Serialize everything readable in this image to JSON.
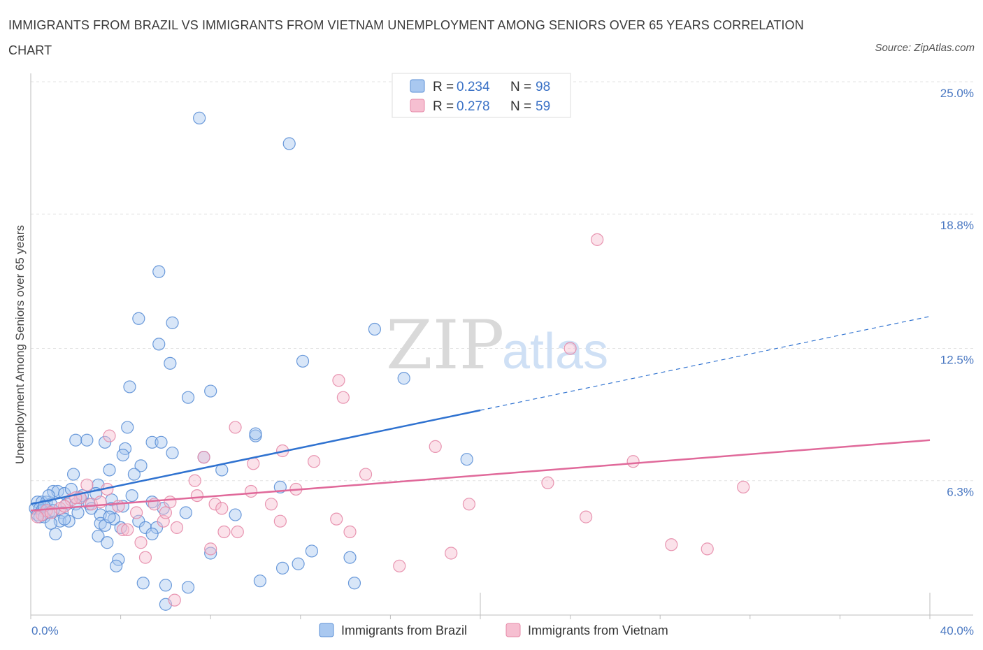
{
  "title": "IMMIGRANTS FROM BRAZIL VS IMMIGRANTS FROM VIETNAM UNEMPLOYMENT AMONG SENIORS OVER 65 YEARS CORRELATION CHART",
  "source": "Source: ZipAtlas.com",
  "watermark": {
    "zip": "ZIP",
    "atlas": "atlas"
  },
  "colors": {
    "brazil_fill": "#a9c8f0",
    "brazil_stroke": "#5b8fd6",
    "brazil_line": "#2f72d0",
    "vietnam_fill": "#f6bfd1",
    "vietnam_stroke": "#e68aa8",
    "vietnam_line": "#e0699a",
    "grid": "#e3e3e3",
    "axis_label": "#4a78c2"
  },
  "legend": {
    "r_label": "R =",
    "n_label": "N =",
    "brazil_r": "0.234",
    "brazil_n": "98",
    "vietnam_r": "0.278",
    "vietnam_n": "59"
  },
  "chart_data": {
    "type": "scatter",
    "xlabel": "",
    "ylabel": "Unemployment Among Seniors over 65 years",
    "xlim": [
      0,
      40
    ],
    "ylim": [
      0,
      25
    ],
    "x_tick_labels": [
      "0.0%",
      "40.0%"
    ],
    "y_ticks": [
      6.3,
      12.5,
      18.8,
      25.0
    ],
    "y_tick_labels": [
      "6.3%",
      "12.5%",
      "18.8%",
      "25.0%"
    ],
    "series": [
      {
        "name": "Immigrants from Brazil",
        "R": 0.234,
        "N": 98,
        "trend": {
          "x_start": 0.0,
          "y_start": 5.2,
          "x_solid_end": 20.0,
          "y_solid_end": 9.6,
          "x_dash_end": 40.0,
          "y_dash_end": 14.0
        },
        "points": [
          [
            7.5,
            23.3
          ],
          [
            11.5,
            22.1
          ],
          [
            5.7,
            16.1
          ],
          [
            4.8,
            13.9
          ],
          [
            6.3,
            13.7
          ],
          [
            15.3,
            13.4
          ],
          [
            5.7,
            12.7
          ],
          [
            6.2,
            11.8
          ],
          [
            12.1,
            11.9
          ],
          [
            16.6,
            11.1
          ],
          [
            4.4,
            10.7
          ],
          [
            8.0,
            10.5
          ],
          [
            7.0,
            10.2
          ],
          [
            4.3,
            8.8
          ],
          [
            10.0,
            8.4
          ],
          [
            10.0,
            8.5
          ],
          [
            2.0,
            8.2
          ],
          [
            2.5,
            8.2
          ],
          [
            3.3,
            8.1
          ],
          [
            5.4,
            8.1
          ],
          [
            5.8,
            8.1
          ],
          [
            4.2,
            7.8
          ],
          [
            4.1,
            7.5
          ],
          [
            6.3,
            7.6
          ],
          [
            7.7,
            7.4
          ],
          [
            19.4,
            7.3
          ],
          [
            4.9,
            7.0
          ],
          [
            8.5,
            6.8
          ],
          [
            3.5,
            6.8
          ],
          [
            4.6,
            6.6
          ],
          [
            1.9,
            6.6
          ],
          [
            3.0,
            6.1
          ],
          [
            11.1,
            6.0
          ],
          [
            1.0,
            5.8
          ],
          [
            1.2,
            5.8
          ],
          [
            1.5,
            5.7
          ],
          [
            2.3,
            5.6
          ],
          [
            2.2,
            5.5
          ],
          [
            3.6,
            5.4
          ],
          [
            5.4,
            5.3
          ],
          [
            0.3,
            5.3
          ],
          [
            0.5,
            5.3
          ],
          [
            0.7,
            5.3
          ],
          [
            0.9,
            5.2
          ],
          [
            1.6,
            5.2
          ],
          [
            2.0,
            5.2
          ],
          [
            2.6,
            5.2
          ],
          [
            4.1,
            5.1
          ],
          [
            5.9,
            5.0
          ],
          [
            2.7,
            5.0
          ],
          [
            3.6,
            5.0
          ],
          [
            0.2,
            5.0
          ],
          [
            0.4,
            5.0
          ],
          [
            0.5,
            4.9
          ],
          [
            0.8,
            4.8
          ],
          [
            1.4,
            4.8
          ],
          [
            2.1,
            4.8
          ],
          [
            3.1,
            4.7
          ],
          [
            0.3,
            4.7
          ],
          [
            0.4,
            4.6
          ],
          [
            0.6,
            4.6
          ],
          [
            6.9,
            4.8
          ],
          [
            9.1,
            4.7
          ],
          [
            3.7,
            4.5
          ],
          [
            4.8,
            4.4
          ],
          [
            1.3,
            4.4
          ],
          [
            0.9,
            4.3
          ],
          [
            1.7,
            4.4
          ],
          [
            3.1,
            4.3
          ],
          [
            3.3,
            4.2
          ],
          [
            4.0,
            4.1
          ],
          [
            5.1,
            4.1
          ],
          [
            5.6,
            4.1
          ],
          [
            1.1,
            3.8
          ],
          [
            3.0,
            3.7
          ],
          [
            5.4,
            3.8
          ],
          [
            3.4,
            3.4
          ],
          [
            8.0,
            2.9
          ],
          [
            12.5,
            3.0
          ],
          [
            14.2,
            2.7
          ],
          [
            3.9,
            2.6
          ],
          [
            11.9,
            2.4
          ],
          [
            3.8,
            2.3
          ],
          [
            11.2,
            2.2
          ],
          [
            5.0,
            1.5
          ],
          [
            6.0,
            1.4
          ],
          [
            7.0,
            1.3
          ],
          [
            10.2,
            1.6
          ],
          [
            14.4,
            1.5
          ],
          [
            6.0,
            0.5
          ],
          [
            0.8,
            5.6
          ],
          [
            1.8,
            5.9
          ],
          [
            2.9,
            5.7
          ],
          [
            4.5,
            5.6
          ],
          [
            1.0,
            4.9
          ],
          [
            3.5,
            4.6
          ],
          [
            0.6,
            5.1
          ],
          [
            1.5,
            4.5
          ]
        ]
      },
      {
        "name": "Immigrants from Vietnam",
        "R": 0.278,
        "N": 59,
        "trend": {
          "x_start": 0.0,
          "y_start": 4.9,
          "x_end": 40.0,
          "y_end": 8.2
        },
        "points": [
          [
            25.2,
            17.6
          ],
          [
            24.0,
            12.5
          ],
          [
            13.7,
            11.0
          ],
          [
            13.9,
            10.2
          ],
          [
            9.1,
            8.8
          ],
          [
            3.5,
            8.4
          ],
          [
            18.0,
            7.9
          ],
          [
            11.2,
            7.7
          ],
          [
            12.6,
            7.2
          ],
          [
            26.8,
            7.2
          ],
          [
            7.7,
            7.4
          ],
          [
            9.9,
            7.1
          ],
          [
            14.9,
            6.6
          ],
          [
            7.3,
            6.3
          ],
          [
            2.5,
            6.1
          ],
          [
            23.0,
            6.2
          ],
          [
            31.7,
            6.0
          ],
          [
            3.4,
            5.9
          ],
          [
            9.8,
            5.8
          ],
          [
            11.8,
            5.9
          ],
          [
            2.2,
            5.5
          ],
          [
            6.2,
            5.3
          ],
          [
            7.4,
            5.6
          ],
          [
            1.8,
            5.4
          ],
          [
            2.7,
            5.2
          ],
          [
            3.1,
            5.3
          ],
          [
            3.9,
            5.1
          ],
          [
            5.5,
            5.2
          ],
          [
            8.2,
            5.2
          ],
          [
            10.7,
            5.2
          ],
          [
            19.5,
            5.2
          ],
          [
            8.5,
            5.0
          ],
          [
            1.3,
            5.0
          ],
          [
            0.7,
            4.9
          ],
          [
            4.7,
            4.8
          ],
          [
            0.5,
            4.7
          ],
          [
            5.9,
            4.4
          ],
          [
            13.6,
            4.5
          ],
          [
            24.7,
            4.6
          ],
          [
            11.1,
            4.4
          ],
          [
            6.5,
            4.1
          ],
          [
            4.1,
            4.0
          ],
          [
            4.3,
            4.0
          ],
          [
            8.6,
            3.9
          ],
          [
            9.2,
            3.9
          ],
          [
            14.2,
            3.9
          ],
          [
            4.9,
            3.4
          ],
          [
            28.5,
            3.3
          ],
          [
            30.1,
            3.1
          ],
          [
            8.0,
            3.1
          ],
          [
            18.7,
            2.9
          ],
          [
            5.1,
            2.7
          ],
          [
            16.4,
            2.3
          ],
          [
            6.4,
            0.7
          ],
          [
            0.3,
            4.6
          ],
          [
            0.9,
            4.8
          ],
          [
            1.5,
            5.1
          ],
          [
            2.0,
            5.5
          ],
          [
            6.0,
            4.8
          ]
        ]
      }
    ]
  },
  "bottom_legend": [
    "Immigrants from Brazil",
    "Immigrants from Vietnam"
  ]
}
